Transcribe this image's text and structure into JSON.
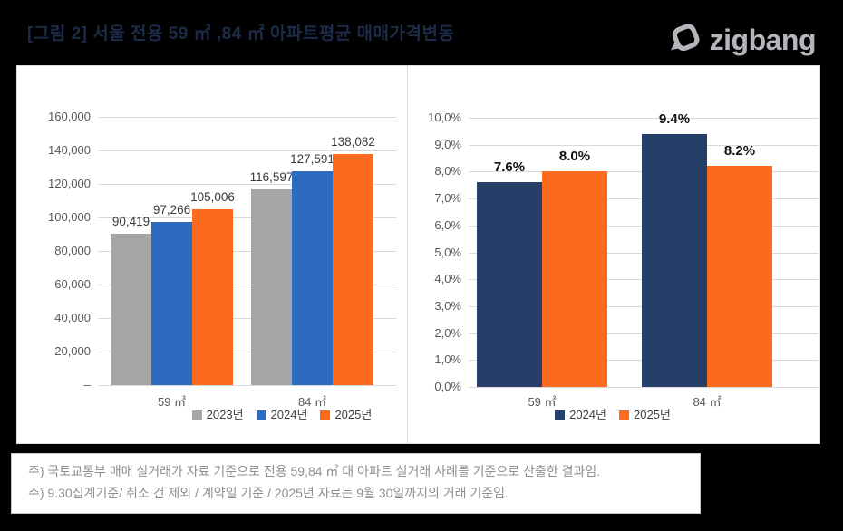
{
  "header": {
    "title": "[그림 2] 서울 전용 59 ㎡ ,84 ㎡ 아파트평균 매매가격변동",
    "logo_text": "zigbang"
  },
  "colors": {
    "background": "#000000",
    "panel": "#FFFFFF",
    "title_text": "#1C2B48",
    "logo_gray": "#B4B6BB",
    "gridline": "#D9D9D9",
    "axis_text": "#595959",
    "note_text": "#8F8F8F",
    "bar_gray": "#A6A6A6",
    "bar_blue": "#2D6BC0",
    "bar_navy": "#253F68",
    "bar_orange": "#FB6A1E"
  },
  "chart_data": [
    {
      "type": "bar",
      "title": "",
      "categories": [
        "59 ㎡",
        "84 ㎡"
      ],
      "series": [
        {
          "name": "2023년",
          "color": "#A6A6A6",
          "values": [
            90419,
            116597
          ],
          "value_labels": [
            "90,419",
            "116,597"
          ]
        },
        {
          "name": "2024년",
          "color": "#2D6BC0",
          "values": [
            97266,
            127591
          ],
          "value_labels": [
            "97,266",
            "127,591"
          ]
        },
        {
          "name": "2025년",
          "color": "#FB6A1E",
          "values": [
            105006,
            138082
          ],
          "value_labels": [
            "105,006",
            "138,082"
          ]
        }
      ],
      "xlabel": "",
      "ylabel": "",
      "ylim": [
        0,
        160000
      ],
      "ytick_labels_bottom_to_top": [
        "–",
        "20,000",
        "40,000",
        "60,000",
        "80,000",
        "100,000",
        "120,000",
        "140,000",
        "160,000"
      ],
      "grid": true,
      "legend_position": "bottom"
    },
    {
      "type": "bar",
      "title": "",
      "categories": [
        "59 ㎡",
        "84 ㎡"
      ],
      "series": [
        {
          "name": "2024년",
          "color": "#253F68",
          "values": [
            7.6,
            9.4
          ],
          "value_labels": [
            "7.6%",
            "9.4%"
          ]
        },
        {
          "name": "2025년",
          "color": "#FB6A1E",
          "values": [
            8.0,
            8.2
          ],
          "value_labels": [
            "8.0%",
            "8.2%"
          ]
        }
      ],
      "xlabel": "",
      "ylabel": "",
      "ylim": [
        0,
        10
      ],
      "ytick_labels_bottom_to_top": [
        "0,0%",
        "1,0%",
        "2,0%",
        "3,0%",
        "4,0%",
        "5,0%",
        "6,0%",
        "7,0%",
        "8,0%",
        "9,0%",
        "10,0%"
      ],
      "grid": true,
      "legend_position": "bottom"
    }
  ],
  "footer": {
    "notes": [
      "주) 국토교통부 매매 실거래가 자료 기준으로 전용 59,84 ㎡ 대 아파트 실거래 사례를 기준으로 산출한 결과임.",
      "주) 9.30집계기준/ 취소 건 제외 / 계약일 기준 / 2025년 자료는 9월 30일까지의 거래 기준임."
    ]
  }
}
